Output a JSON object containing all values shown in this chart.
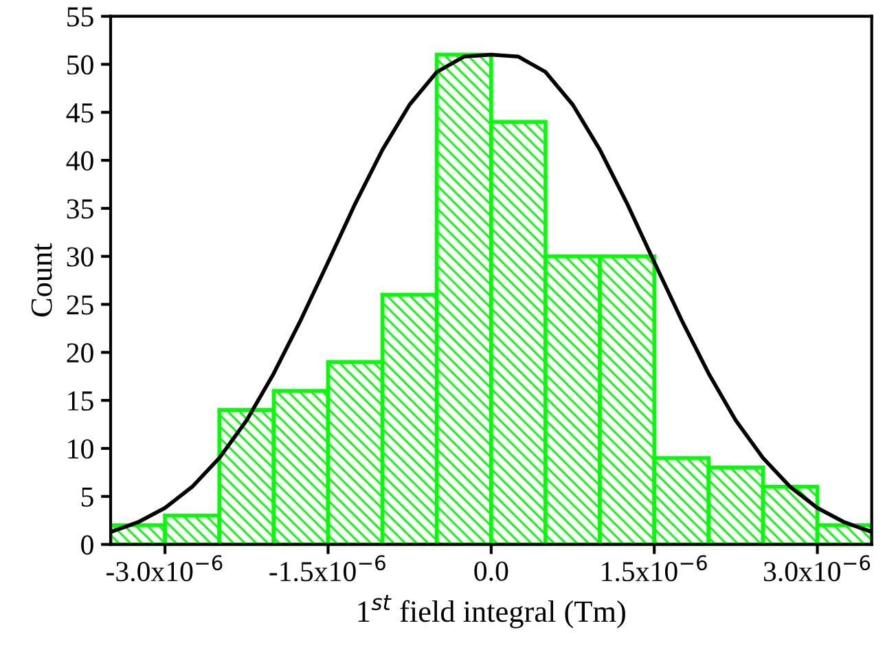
{
  "chart_data": {
    "type": "histogram",
    "xlabel": "1$^{st}$ field integral (Tm)",
    "ylabel": "Count",
    "bins": [
      -3.5e-06,
      -3e-06,
      -2.5e-06,
      -2e-06,
      -1.5e-06,
      -1e-06,
      -5e-07,
      0.0,
      5e-07,
      1e-06,
      1.5e-06,
      2e-06,
      2.5e-06,
      3e-06,
      3.5e-06
    ],
    "values": [
      2,
      3,
      14,
      16,
      19,
      26,
      51,
      44,
      30,
      30,
      9,
      8,
      6,
      2
    ],
    "color": "#00ff00",
    "series": [
      {
        "type": "line",
        "color": "#000000",
        "x": [
          -3.5e-06,
          -3.25e-06,
          -3e-06,
          -2.75e-06,
          -2.5e-06,
          -2.25e-06,
          -2e-06,
          -1.75e-06,
          -1.5e-06,
          -1.25e-06,
          -1e-06,
          -7.5e-07,
          -5e-07,
          -2.5e-07,
          0.0,
          2.5e-07,
          5e-07,
          7.5e-07,
          1e-06,
          1.25e-06,
          1.5e-06,
          1.75e-06,
          2e-06,
          2.25e-06,
          2.5e-06,
          2.75e-06,
          3e-06,
          3.25e-06,
          3.5e-06
        ],
        "values": [
          1.3,
          2.3,
          3.8,
          6.0,
          9.0,
          12.9,
          17.8,
          23.4,
          29.4,
          35.5,
          41.1,
          45.8,
          49.2,
          50.8,
          51,
          50.8,
          49.2,
          45.8,
          41.1,
          35.5,
          29.4,
          23.4,
          17.8,
          12.9,
          9.0,
          6.0,
          3.8,
          2.3,
          1.3
        ]
      }
    ],
    "xlim": [
      -3.5e-06,
      3.5e-06
    ],
    "xticks": [
      {
        "value": -3e-06,
        "label": "-3.0x10$^{−6}$"
      },
      {
        "value": -1.5e-06,
        "label": "-1.5x10$^{−6}$"
      },
      {
        "value": 0.0,
        "label": "0.0"
      },
      {
        "value": 1.5e-06,
        "label": "1.5x10$^{−6}$"
      },
      {
        "value": 3e-06,
        "label": "3.0x10$^{−6}$"
      }
    ],
    "ylim": [
      0,
      55
    ],
    "yticks": [
      0,
      5,
      10,
      15,
      20,
      25,
      30,
      35,
      40,
      45,
      50,
      55
    ],
    "grid": false,
    "legend": false
  }
}
